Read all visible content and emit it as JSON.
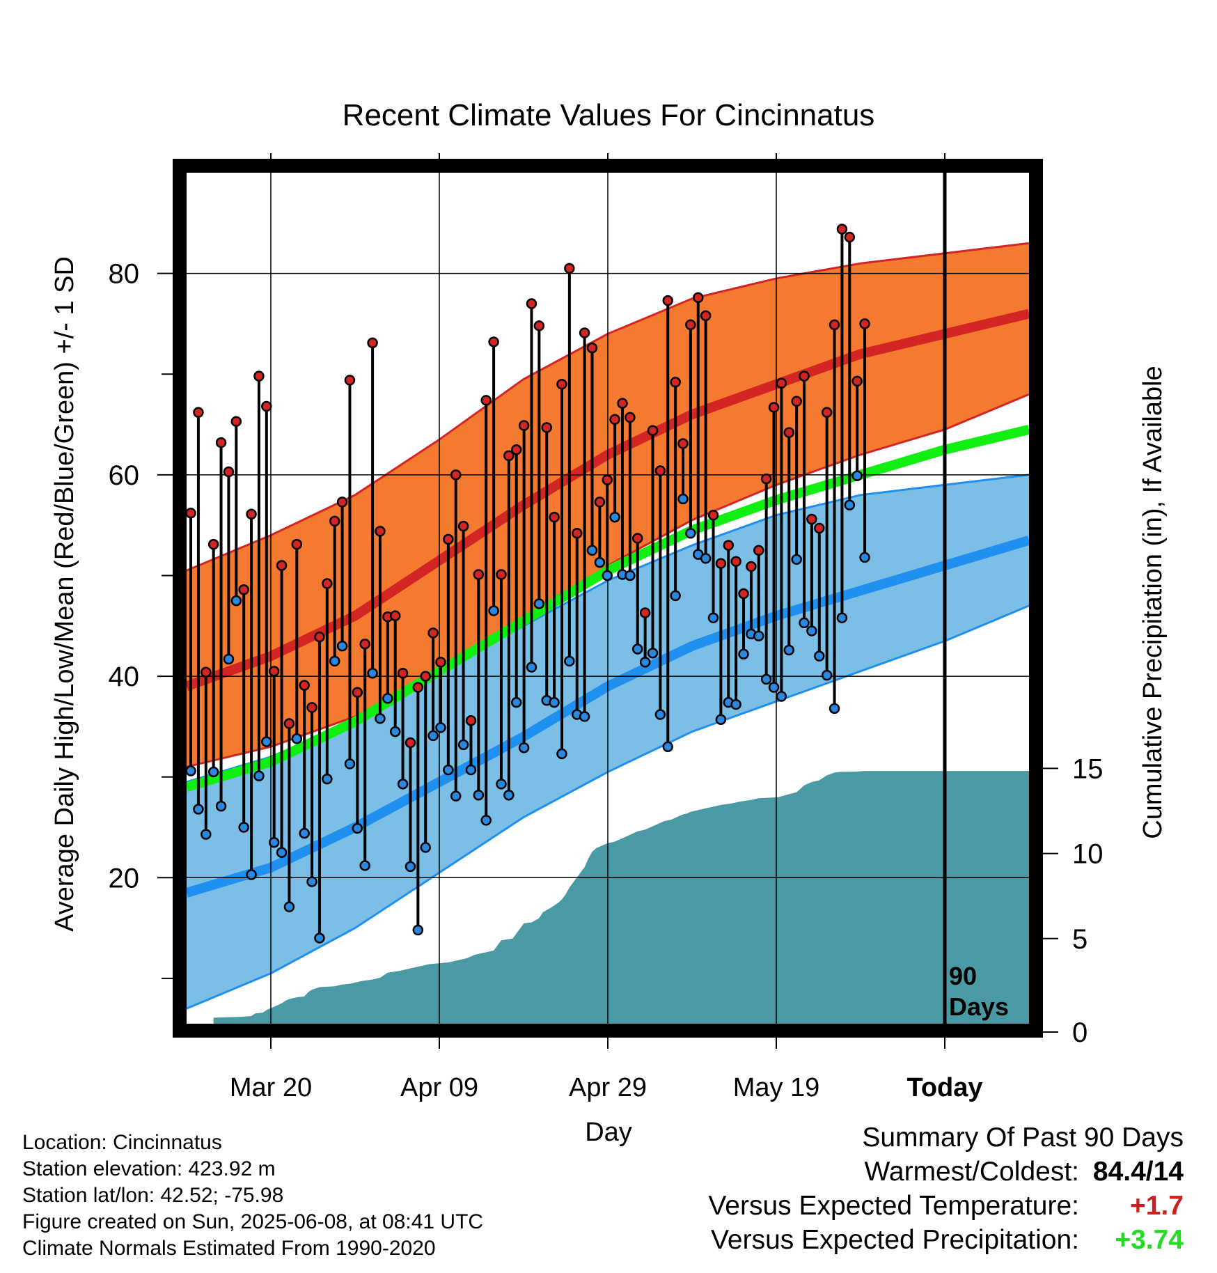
{
  "chart_data": {
    "type": "line",
    "title": "Recent Climate Values For Cincinnatus",
    "xlabel": "Day",
    "ylabel_left": "Average Daily High/Low/Mean (Red/Blue/Green) +/- 1 SD",
    "ylabel_right": "Cumulative Precipitation (in), If Available",
    "x_ticks": [
      "Mar 20",
      "Apr 09",
      "Apr 29",
      "May 19",
      "Today"
    ],
    "y_left_ticks": [
      "20",
      "40",
      "60",
      "80"
    ],
    "y_right_ticks": [
      "0",
      "5",
      "10",
      "15"
    ],
    "ylim_left": [
      5.5,
      90
    ],
    "ylim_right": [
      0,
      50
    ],
    "days_marker_label": [
      "90",
      "Days"
    ],
    "normals": {
      "high_mean": [
        [
          0,
          39
        ],
        [
          10,
          42
        ],
        [
          20,
          46
        ],
        [
          30,
          51.5
        ],
        [
          40,
          57
        ],
        [
          50,
          62
        ],
        [
          60,
          66
        ],
        [
          70,
          69
        ],
        [
          80,
          72
        ],
        [
          90,
          74
        ],
        [
          100,
          76
        ]
      ],
      "high_upper": [
        [
          0,
          50.5
        ],
        [
          10,
          54
        ],
        [
          20,
          58
        ],
        [
          30,
          63.5
        ],
        [
          40,
          69.5
        ],
        [
          50,
          74
        ],
        [
          60,
          77.5
        ],
        [
          70,
          79.5
        ],
        [
          80,
          81
        ],
        [
          90,
          82
        ],
        [
          100,
          83
        ]
      ],
      "high_lower": [
        [
          0,
          31
        ],
        [
          10,
          33
        ],
        [
          20,
          36
        ],
        [
          30,
          40.5
        ],
        [
          40,
          45.5
        ],
        [
          50,
          51
        ],
        [
          60,
          55.5
        ],
        [
          70,
          59
        ],
        [
          80,
          62
        ],
        [
          90,
          64.5
        ],
        [
          100,
          68
        ]
      ],
      "low_mean": [
        [
          0,
          18.5
        ],
        [
          10,
          21
        ],
        [
          20,
          25
        ],
        [
          30,
          29.5
        ],
        [
          40,
          34
        ],
        [
          50,
          39
        ],
        [
          60,
          43
        ],
        [
          70,
          46
        ],
        [
          80,
          48.5
        ],
        [
          90,
          51
        ],
        [
          100,
          53.5
        ]
      ],
      "low_upper": [
        [
          0,
          29.5
        ],
        [
          10,
          32
        ],
        [
          20,
          35.5
        ],
        [
          30,
          40.5
        ],
        [
          40,
          45
        ],
        [
          50,
          49.5
        ],
        [
          60,
          53
        ],
        [
          70,
          56
        ],
        [
          80,
          58
        ],
        [
          90,
          59
        ],
        [
          100,
          60
        ]
      ],
      "low_lower": [
        [
          0,
          7
        ],
        [
          10,
          10.5
        ],
        [
          20,
          15
        ],
        [
          30,
          20.5
        ],
        [
          40,
          26
        ],
        [
          50,
          30.5
        ],
        [
          60,
          34.5
        ],
        [
          70,
          37.5
        ],
        [
          80,
          40.5
        ],
        [
          90,
          43.5
        ],
        [
          100,
          47
        ]
      ],
      "mean": [
        [
          0,
          29
        ],
        [
          10,
          31.5
        ],
        [
          20,
          35.5
        ],
        [
          30,
          40.5
        ],
        [
          40,
          45.5
        ],
        [
          50,
          50.5
        ],
        [
          60,
          54.5
        ],
        [
          70,
          57.5
        ],
        [
          80,
          60
        ],
        [
          90,
          62.5
        ],
        [
          100,
          64.5
        ]
      ]
    },
    "daily_highs": [
      56.2,
      66.2,
      40.4,
      53.1,
      63.2,
      60.3,
      65.3,
      48.6,
      56.1,
      69.8,
      66.8,
      40.5,
      51.0,
      35.3,
      53.1,
      39.1,
      36.9,
      43.9,
      49.2,
      55.4,
      57.3,
      69.4,
      38.4,
      43.2,
      73.1,
      54.4,
      45.9,
      46.0,
      40.3,
      33.4,
      38.9,
      40.0,
      44.3,
      41.4,
      53.6,
      60.0,
      54.9,
      35.6,
      50.1,
      67.4,
      73.2,
      50.1,
      61.9,
      62.5,
      64.9,
      77.0,
      74.8,
      64.7,
      55.8,
      69.0,
      80.5,
      54.2,
      74.1,
      72.6,
      57.3,
      59.5,
      65.5,
      67.1,
      65.7,
      53.7,
      46.3,
      64.4,
      60.4,
      77.3,
      69.2,
      63.1,
      74.9,
      77.6,
      75.8,
      56.0,
      51.2,
      53.0,
      51.4,
      48.2,
      50.9,
      52.5,
      59.6,
      66.7,
      69.1,
      64.2,
      67.3,
      69.8,
      55.6,
      54.7,
      66.2,
      74.9,
      84.4,
      83.6,
      69.3,
      75.0
    ],
    "daily_lows": [
      30.6,
      26.8,
      24.3,
      30.5,
      27.1,
      41.7,
      47.5,
      25.0,
      20.3,
      30.1,
      33.5,
      23.5,
      22.5,
      17.1,
      33.8,
      24.4,
      19.6,
      14.0,
      29.8,
      41.5,
      43.0,
      31.3,
      24.9,
      21.2,
      40.3,
      35.8,
      37.8,
      34.5,
      29.3,
      21.1,
      14.8,
      23.0,
      34.1,
      34.9,
      30.7,
      28.1,
      33.2,
      30.7,
      28.2,
      25.7,
      46.5,
      29.3,
      28.2,
      37.4,
      32.9,
      40.9,
      47.2,
      37.6,
      37.4,
      32.3,
      41.5,
      36.2,
      36.0,
      52.5,
      51.3,
      50.0,
      55.8,
      50.1,
      50.0,
      42.7,
      41.4,
      42.3,
      36.2,
      33.0,
      48.0,
      57.6,
      54.2,
      52.1,
      51.7,
      45.8,
      35.7,
      37.4,
      37.2,
      42.2,
      44.2,
      44.0,
      39.7,
      38.9,
      38.0,
      42.6,
      51.6,
      45.3,
      44.5,
      42.0,
      40.1,
      36.8,
      45.8,
      57.0,
      59.9,
      51.8
    ],
    "cumulative_precip": [
      [
        0,
        0
      ],
      [
        6,
        0
      ],
      [
        6,
        0.35
      ],
      [
        13,
        0.4
      ],
      [
        16,
        0.45
      ],
      [
        17,
        0.6
      ],
      [
        19,
        0.65
      ],
      [
        20,
        0.8
      ],
      [
        21,
        0.9
      ],
      [
        22,
        1.0
      ],
      [
        23,
        1.1
      ],
      [
        24,
        1.2
      ],
      [
        25,
        1.35
      ],
      [
        26,
        1.45
      ],
      [
        27,
        1.5
      ],
      [
        28,
        1.55
      ],
      [
        30,
        1.6
      ],
      [
        31,
        1.85
      ],
      [
        32,
        2.0
      ],
      [
        34,
        2.15
      ],
      [
        38,
        2.2
      ],
      [
        40,
        2.3
      ],
      [
        42,
        2.35
      ],
      [
        45,
        2.5
      ],
      [
        48,
        2.6
      ],
      [
        50,
        2.7
      ],
      [
        52,
        3.0
      ],
      [
        55,
        3.1
      ],
      [
        60,
        3.35
      ],
      [
        63,
        3.5
      ],
      [
        68,
        3.6
      ],
      [
        70,
        3.7
      ],
      [
        73,
        3.85
      ],
      [
        75,
        4.05
      ],
      [
        78,
        4.2
      ],
      [
        80,
        4.3
      ],
      [
        81,
        4.6
      ],
      [
        82,
        4.9
      ],
      [
        85,
        5.0
      ],
      [
        86,
        5.3
      ],
      [
        88,
        5.9
      ],
      [
        90,
        5.95
      ],
      [
        92,
        6.2
      ],
      [
        93,
        6.55
      ],
      [
        95,
        6.8
      ],
      [
        97,
        7.1
      ],
      [
        98,
        7.3
      ],
      [
        99,
        7.6
      ],
      [
        100,
        8.0
      ],
      [
        101,
        8.3
      ],
      [
        102,
        8.6
      ],
      [
        103,
        8.9
      ],
      [
        104,
        9.2
      ],
      [
        105,
        9.7
      ],
      [
        106,
        10.1
      ],
      [
        107,
        10.3
      ],
      [
        108,
        10.4
      ],
      [
        109,
        10.5
      ],
      [
        110,
        10.6
      ],
      [
        111,
        10.65
      ],
      [
        112,
        10.7
      ],
      [
        113,
        10.8
      ],
      [
        114,
        10.9
      ],
      [
        115,
        11.0
      ],
      [
        116,
        11.1
      ],
      [
        117,
        11.2
      ],
      [
        118,
        11.3
      ],
      [
        120,
        11.4
      ],
      [
        121,
        11.5
      ],
      [
        122,
        11.6
      ],
      [
        123,
        11.7
      ],
      [
        124,
        11.8
      ],
      [
        125,
        11.9
      ],
      [
        127,
        12.0
      ],
      [
        128,
        12.1
      ],
      [
        129,
        12.2
      ],
      [
        130,
        12.3
      ],
      [
        131,
        12.35
      ],
      [
        132,
        12.45
      ],
      [
        134,
        12.55
      ],
      [
        136,
        12.65
      ],
      [
        138,
        12.75
      ],
      [
        140,
        12.85
      ],
      [
        143,
        12.95
      ],
      [
        145,
        13.05
      ],
      [
        148,
        13.15
      ],
      [
        150,
        13.25
      ],
      [
        155,
        13.3
      ],
      [
        160,
        13.6
      ],
      [
        161,
        13.8
      ],
      [
        162,
        14.0
      ],
      [
        164,
        14.2
      ],
      [
        166,
        14.3
      ],
      [
        168,
        14.6
      ],
      [
        170,
        14.75
      ],
      [
        172,
        14.8
      ],
      [
        175,
        14.8
      ],
      [
        178,
        14.85
      ]
    ]
  },
  "footer": {
    "location": "Location: Cincinnatus",
    "elevation": "Station elevation: 423.92 m",
    "latlon": "Station lat/lon: 42.52; -75.98",
    "created": "Figure created on Sun, 2025-06-08, at 08:41 UTC",
    "normals": "Climate Normals Estimated From 1990-2020"
  },
  "summary": {
    "title": "Summary Of Past 90 Days",
    "warmest_label": "Warmest/Coldest:",
    "warmest_value": "84.4/14",
    "temp_label": "Versus Expected Temperature:",
    "temp_value": "+1.7",
    "temp_color": "#cc1f1f",
    "precip_label": "Versus Expected Precipitation:",
    "precip_value": "+3.74",
    "precip_color": "#22dd22"
  },
  "colors": {
    "high_band": "#f47a30",
    "high_line": "#d42525",
    "low_band": "#7bbfe6",
    "low_line": "#1f8ff0",
    "mean_line": "#11ee11",
    "precip_fill": "#4a9aa5",
    "high_dot": "#d42525",
    "low_dot": "#2b88e0"
  }
}
